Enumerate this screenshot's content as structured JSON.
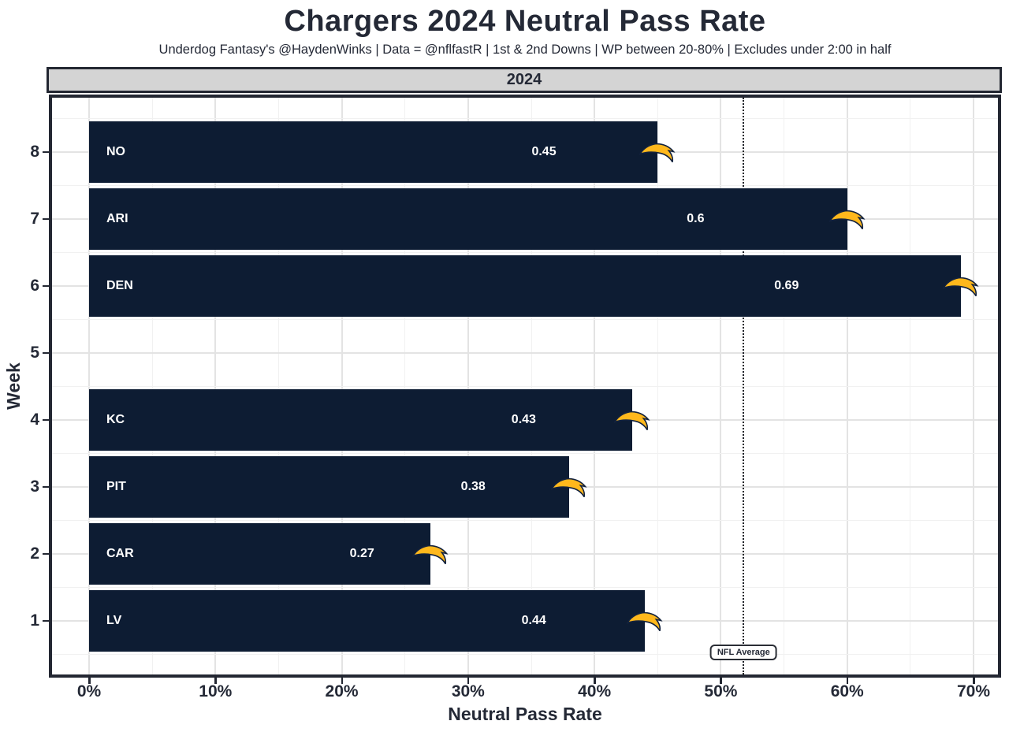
{
  "header": {
    "title": "Chargers 2024 Neutral Pass Rate",
    "subtitle": "Underdog Fantasy's @HaydenWinks | Data = @nflfastR | 1st & 2nd Downs | WP between 20-80% | Excludes under 2:00 in half"
  },
  "facet": {
    "label": "2024"
  },
  "chart_data": {
    "type": "bar",
    "orientation": "horizontal",
    "title": "Chargers 2024 Neutral Pass Rate",
    "xlabel": "Neutral Pass Rate",
    "ylabel": "Week",
    "xlim": [
      0,
      0.7
    ],
    "grid": "major and minor, light gray on white",
    "x_ticks": [
      {
        "value": 0.0,
        "label": "0%"
      },
      {
        "value": 0.1,
        "label": "10%"
      },
      {
        "value": 0.2,
        "label": "20%"
      },
      {
        "value": 0.3,
        "label": "30%"
      },
      {
        "value": 0.4,
        "label": "40%"
      },
      {
        "value": 0.5,
        "label": "50%"
      },
      {
        "value": 0.6,
        "label": "60%"
      },
      {
        "value": 0.7,
        "label": "70%"
      }
    ],
    "weeks": [
      {
        "week": 8,
        "opponent": "NO",
        "value": 0.45,
        "value_label": "0.45"
      },
      {
        "week": 7,
        "opponent": "ARI",
        "value": 0.6,
        "value_label": "0.6"
      },
      {
        "week": 6,
        "opponent": "DEN",
        "value": 0.69,
        "value_label": "0.69"
      },
      {
        "week": 5,
        "opponent": null,
        "value": null,
        "value_label": null
      },
      {
        "week": 4,
        "opponent": "KC",
        "value": 0.43,
        "value_label": "0.43"
      },
      {
        "week": 3,
        "opponent": "PIT",
        "value": 0.38,
        "value_label": "0.38"
      },
      {
        "week": 2,
        "opponent": "CAR",
        "value": 0.27,
        "value_label": "0.27"
      },
      {
        "week": 1,
        "opponent": "LV",
        "value": 0.44,
        "value_label": "0.44"
      }
    ],
    "reference_line": {
      "value": 0.518,
      "label": "NFL Average",
      "style": "dotted"
    },
    "colors": {
      "bar": "#0d1c33",
      "bolt_gold": "#ffb81c",
      "bolt_outline": "#13223d",
      "text_dark": "#242936",
      "bar_text": "#ffffff",
      "strip_bg": "#d4d4d4",
      "grid_major": "#e3e3e3",
      "grid_minor": "#f1f1f1"
    }
  }
}
